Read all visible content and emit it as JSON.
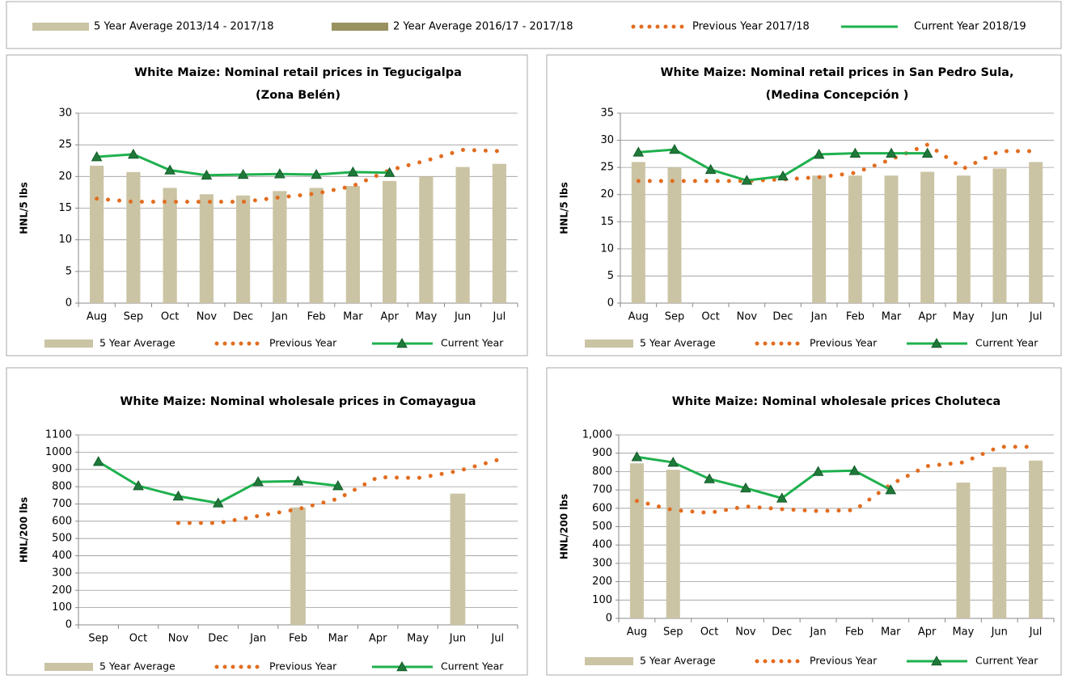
{
  "legend": {
    "items": [
      {
        "name": "5 Year Average 2013/14 - 2017/18",
        "color": "#cbc4a4",
        "marker": "bar"
      },
      {
        "name": "2 Year Average 2016/17 - 2017/18",
        "color": "#9a9160",
        "marker": "bar"
      },
      {
        "name": "Previous Year 2017/18",
        "color": "#e36c1e",
        "marker": "dots"
      },
      {
        "name": "Current Year 2018/19",
        "color": "#1fb04e",
        "marker": "line"
      }
    ]
  },
  "chart_data": [
    {
      "type": "combo",
      "title": [
        "White Maize: Nominal retail prices in Tegucigalpa",
        "(Zona Belén)"
      ],
      "y_label": "HNL/5 lbs",
      "categories": [
        "Aug",
        "Sep",
        "Oct",
        "Nov",
        "Dec",
        "Jan",
        "Feb",
        "Mar",
        "Apr",
        "May",
        "Jun",
        "Jul"
      ],
      "ylim": [
        0,
        30
      ],
      "yticks": [
        0,
        5,
        10,
        15,
        20,
        25,
        30
      ],
      "grid": true,
      "series": [
        {
          "name": "5 Year Average",
          "color": "#cbc4a4",
          "marker": "bar",
          "values": [
            21.7,
            20.7,
            18.2,
            17.2,
            17.0,
            17.7,
            18.2,
            18.5,
            19.3,
            20.0,
            21.5,
            22.0
          ]
        },
        {
          "name": "Previous Year",
          "color": "#e36c1e",
          "marker": "dots",
          "values": [
            16.5,
            16.0,
            16.0,
            16.0,
            16.0,
            16.7,
            17.3,
            18.5,
            21.0,
            22.5,
            24.2,
            24.0
          ]
        },
        {
          "name": "Current Year",
          "color": "#1fb04e",
          "marker": "line",
          "values": [
            23.1,
            23.5,
            21.0,
            20.2,
            20.3,
            20.4,
            20.3,
            20.7,
            20.6,
            null,
            null,
            null
          ]
        }
      ]
    },
    {
      "type": "combo",
      "title": [
        "White Maize: Nominal retail prices in San Pedro Sula,",
        "(Medina Concepción )"
      ],
      "y_label": "HNL/5 lbs",
      "categories": [
        "Aug",
        "Sep",
        "Oct",
        "Nov",
        "Dec",
        "Jan",
        "Feb",
        "Mar",
        "Apr",
        "May",
        "Jun",
        "Jul"
      ],
      "ylim": [
        0,
        35
      ],
      "yticks": [
        0,
        5,
        10,
        15,
        20,
        25,
        30,
        35
      ],
      "grid": true,
      "series": [
        {
          "name": "5 Year Average",
          "color": "#cbc4a4",
          "marker": "bar",
          "values": [
            26.0,
            25.0,
            null,
            null,
            null,
            23.5,
            23.5,
            23.5,
            24.2,
            23.5,
            24.8,
            26.0
          ]
        },
        {
          "name": "Previous Year",
          "color": "#e36c1e",
          "marker": "dots",
          "values": [
            22.5,
            22.5,
            22.5,
            22.5,
            22.8,
            23.2,
            24.0,
            26.5,
            29.2,
            24.8,
            28.0,
            28.0
          ]
        },
        {
          "name": "Current Year",
          "color": "#1fb04e",
          "marker": "line",
          "values": [
            27.8,
            28.3,
            24.6,
            22.6,
            23.4,
            27.4,
            27.6,
            27.6,
            27.6,
            null,
            null,
            null
          ]
        }
      ]
    },
    {
      "type": "combo",
      "title": [
        "White Maize: Nominal wholesale prices in Comayagua"
      ],
      "y_label": "HNL/200 lbs",
      "categories": [
        "Sep",
        "Oct",
        "Nov",
        "Dec",
        "Jan",
        "Feb",
        "Mar",
        "Apr",
        "May",
        "Jun",
        "Jul"
      ],
      "ylim": [
        0,
        1100
      ],
      "yticks": [
        0,
        100,
        200,
        300,
        400,
        500,
        600,
        700,
        800,
        900,
        1000,
        1100
      ],
      "grid": true,
      "series": [
        {
          "name": "5 Year Average",
          "color": "#cbc4a4",
          "marker": "bar",
          "values": [
            null,
            null,
            null,
            null,
            null,
            680,
            null,
            null,
            null,
            760,
            null
          ]
        },
        {
          "name": "Previous Year",
          "color": "#e36c1e",
          "marker": "dots",
          "values": [
            null,
            null,
            590,
            590,
            630,
            670,
            730,
            855,
            850,
            890,
            955
          ]
        },
        {
          "name": "Current Year",
          "color": "#1fb04e",
          "marker": "line",
          "values": [
            945,
            805,
            745,
            705,
            828,
            832,
            805,
            null,
            null,
            null,
            null
          ]
        }
      ]
    },
    {
      "type": "combo",
      "title": [
        "White Maize: Nominal wholesale prices Choluteca"
      ],
      "y_label": "HNL/200 lbs",
      "categories": [
        "Aug",
        "Sep",
        "Oct",
        "Nov",
        "Dec",
        "Jan",
        "Feb",
        "Mar",
        "Apr",
        "May",
        "Jun",
        "Jul"
      ],
      "ylim": [
        0,
        1000
      ],
      "yticks": [
        0,
        100,
        200,
        300,
        400,
        500,
        600,
        700,
        800,
        900,
        {
          "value": 1000,
          "label": "1,000"
        }
      ],
      "grid": true,
      "series": [
        {
          "name": "5 Year Average",
          "color": "#cbc4a4",
          "marker": "bar",
          "values": [
            845,
            810,
            null,
            null,
            null,
            null,
            null,
            null,
            null,
            740,
            825,
            860
          ]
        },
        {
          "name": "Previous Year",
          "color": "#e36c1e",
          "marker": "dots",
          "values": [
            640,
            590,
            575,
            610,
            595,
            585,
            590,
            730,
            830,
            850,
            935,
            935
          ]
        },
        {
          "name": "Current Year",
          "color": "#1fb04e",
          "marker": "line",
          "values": [
            880,
            850,
            760,
            710,
            655,
            800,
            805,
            700,
            null,
            null,
            null,
            null
          ]
        }
      ]
    }
  ]
}
